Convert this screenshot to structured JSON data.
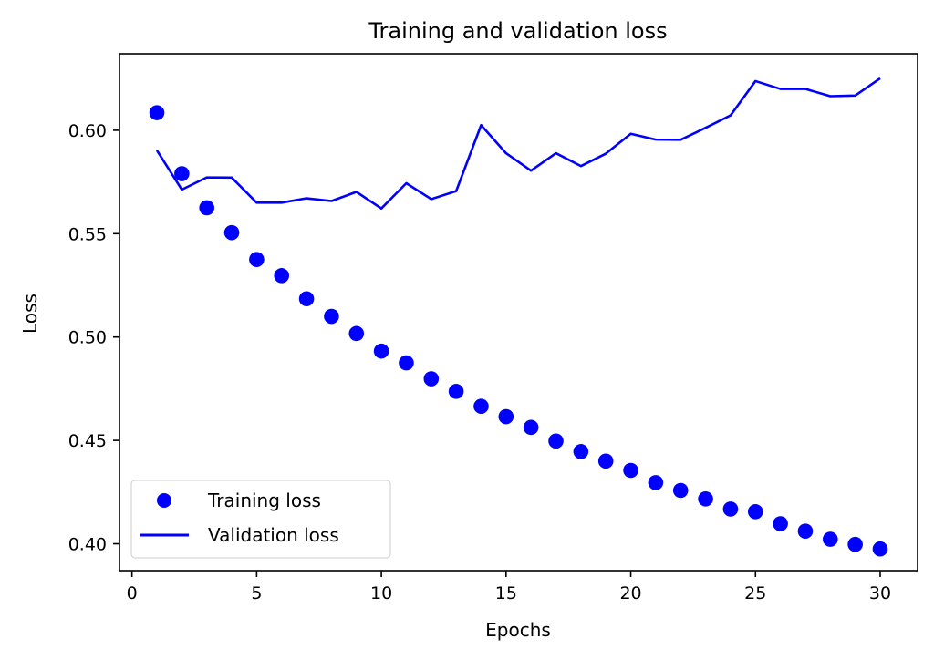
{
  "chart_data": {
    "type": "line",
    "title": "Training and validation loss",
    "xlabel": "Epochs",
    "ylabel": "Loss",
    "xlim": [
      -0.5,
      31.5
    ],
    "ylim": [
      0.387,
      0.637
    ],
    "xticks": [
      0,
      5,
      10,
      15,
      20,
      25,
      30
    ],
    "yticks": [
      0.4,
      0.45,
      0.5,
      0.55,
      0.6
    ],
    "xtick_labels": [
      "0",
      "5",
      "10",
      "15",
      "20",
      "25",
      "30"
    ],
    "ytick_labels": [
      "0.40",
      "0.45",
      "0.50",
      "0.55",
      "0.60"
    ],
    "grid": false,
    "legend_position": "lower-left",
    "x": [
      1,
      2,
      3,
      4,
      5,
      6,
      7,
      8,
      9,
      10,
      11,
      12,
      13,
      14,
      15,
      16,
      17,
      18,
      19,
      20,
      21,
      22,
      23,
      24,
      25,
      26,
      27,
      28,
      29,
      30
    ],
    "series": [
      {
        "name": "Training loss",
        "style": "dots",
        "color": "#0000ff",
        "values": [
          0.6085,
          0.579,
          0.5625,
          0.5505,
          0.5375,
          0.5297,
          0.5185,
          0.51,
          0.5017,
          0.4932,
          0.4875,
          0.4798,
          0.4737,
          0.4665,
          0.4615,
          0.4563,
          0.4497,
          0.4446,
          0.44,
          0.4355,
          0.4296,
          0.4258,
          0.4217,
          0.4168,
          0.4155,
          0.4097,
          0.4061,
          0.4022,
          0.3997,
          0.3975
        ]
      },
      {
        "name": "Validation loss",
        "style": "line",
        "color": "#0000ff",
        "values": [
          0.5903,
          0.5713,
          0.5772,
          0.5771,
          0.565,
          0.565,
          0.5671,
          0.5658,
          0.5702,
          0.5622,
          0.5744,
          0.5667,
          0.5706,
          0.6025,
          0.5889,
          0.5805,
          0.5889,
          0.5827,
          0.5887,
          0.5983,
          0.5955,
          0.5954,
          0.6012,
          0.6072,
          0.6238,
          0.62,
          0.62,
          0.6165,
          0.6168,
          0.6251
        ]
      }
    ]
  }
}
